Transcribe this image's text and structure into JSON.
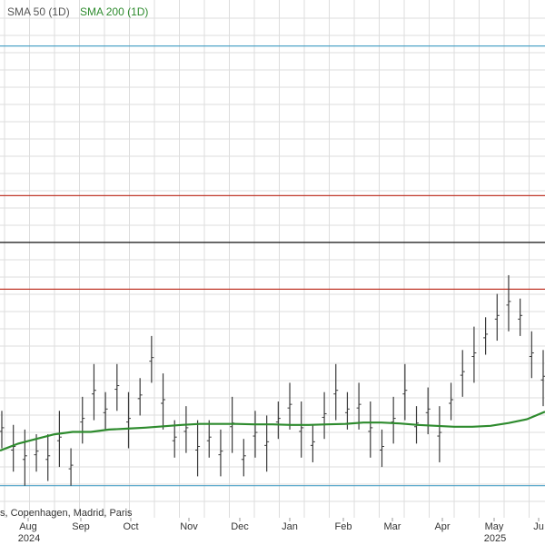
{
  "legend": {
    "sma50_label": "SMA 50 (1D)",
    "sma200_label": "SMA 200 (1D)"
  },
  "exchanges_text": "s, Copenhagen, Madrid, Paris",
  "colors": {
    "price_bar": "#3a3a3a",
    "sma200": "#2e8b2e",
    "sma50_legend": "#555555",
    "grid": "#dddddd",
    "blue_line": "#4fa3c7",
    "red_line": "#c0392b",
    "black_line": "#111111"
  },
  "chart_data": {
    "type": "line",
    "title": "",
    "x_ticks": [
      {
        "month": "Aug",
        "year": "2024"
      },
      {
        "month": "Sep",
        "year": ""
      },
      {
        "month": "Oct",
        "year": ""
      },
      {
        "month": "Nov",
        "year": ""
      },
      {
        "month": "Dec",
        "year": ""
      },
      {
        "month": "Jan",
        "year": ""
      },
      {
        "month": "Feb",
        "year": ""
      },
      {
        "month": "Mar",
        "year": ""
      },
      {
        "month": "Apr",
        "year": ""
      },
      {
        "month": "May",
        "year": "2025"
      },
      {
        "month": "Ju",
        "year": ""
      }
    ],
    "ylim": [
      0,
      100
    ],
    "grid": true,
    "reference_lines": [
      {
        "name": "upper-blue",
        "value": 96,
        "color": "blue"
      },
      {
        "name": "upper-red",
        "value": 64,
        "color": "red"
      },
      {
        "name": "black",
        "value": 54,
        "color": "black"
      },
      {
        "name": "lower-red",
        "value": 44,
        "color": "red"
      },
      {
        "name": "lower-blue",
        "value": 2,
        "color": "blue"
      }
    ],
    "series": [
      {
        "name": "SMA 200 (1D)",
        "values": [
          9.5,
          11,
          12,
          13,
          13.5,
          13.5,
          14,
          14.2,
          14.4,
          14.7,
          15,
          15.2,
          15.2,
          15.2,
          15.1,
          15.1,
          15,
          15,
          15.1,
          15.2,
          15.5,
          15.5,
          15.3,
          15,
          14.8,
          14.6,
          14.6,
          14.8,
          15.4,
          16.2,
          17.8
        ]
      },
      {
        "name": "price",
        "values": [
          14,
          10,
          8,
          9,
          8,
          12,
          6,
          16,
          22,
          18,
          23,
          16,
          21,
          29,
          20,
          12,
          14,
          10,
          12,
          9,
          15,
          8,
          13,
          11,
          16,
          19,
          14,
          11,
          17,
          22,
          18,
          19,
          14,
          10,
          16,
          22,
          15,
          18,
          13,
          20,
          26,
          30,
          34,
          38,
          41,
          38,
          30,
          25
        ]
      }
    ]
  }
}
